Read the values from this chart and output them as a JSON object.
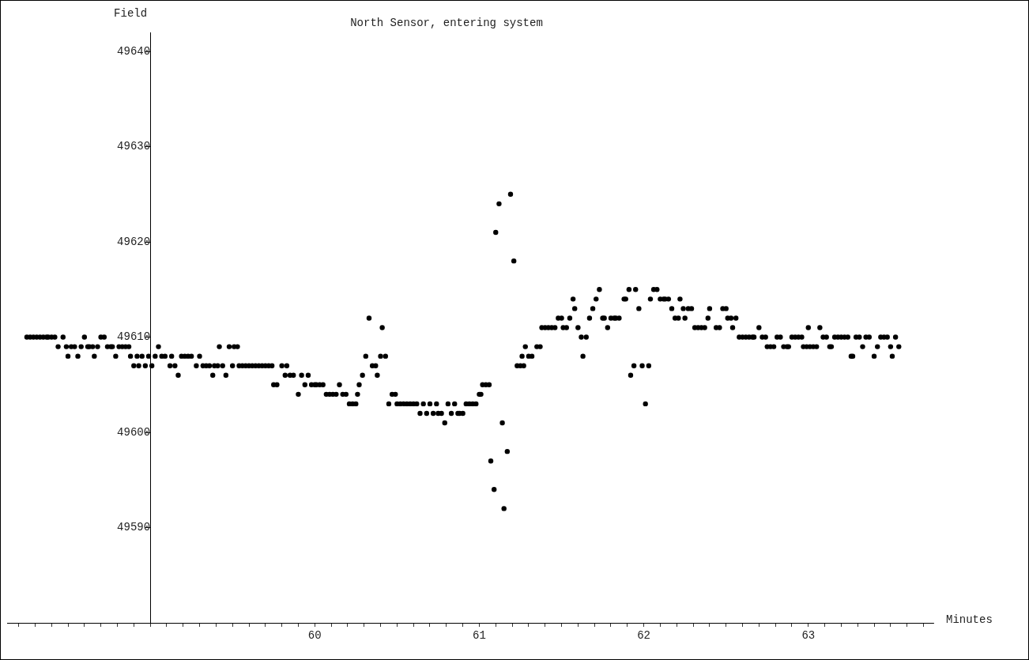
{
  "chart_data": {
    "type": "scatter",
    "title": "North Sensor, entering system",
    "xlabel": "Minutes",
    "ylabel": "Field",
    "color": "#000000",
    "marker": "circle",
    "x": [
      58.25,
      58.27,
      58.29,
      58.31,
      58.33,
      58.35,
      58.37,
      58.38,
      58.4,
      58.42,
      58.44,
      58.47,
      58.49,
      58.5,
      58.52,
      58.54,
      58.56,
      58.58,
      58.6,
      58.62,
      58.63,
      58.65,
      58.66,
      58.68,
      58.7,
      58.72,
      58.74,
      58.76,
      58.77,
      58.79,
      58.81,
      58.83,
      58.85,
      58.87,
      58.88,
      58.9,
      58.92,
      58.93,
      58.95,
      58.97,
      58.99,
      59.01,
      59.03,
      59.05,
      59.07,
      59.09,
      59.12,
      59.13,
      59.15,
      59.17,
      59.19,
      59.21,
      59.23,
      59.25,
      59.28,
      59.3,
      59.32,
      59.34,
      59.36,
      59.38,
      59.39,
      59.41,
      59.42,
      59.44,
      59.46,
      59.48,
      59.5,
      59.51,
      59.53,
      59.54,
      59.56,
      59.58,
      59.6,
      59.62,
      59.64,
      59.66,
      59.68,
      59.7,
      59.72,
      59.74,
      59.75,
      59.77,
      59.8,
      59.82,
      59.83,
      59.85,
      59.87,
      59.9,
      59.92,
      59.94,
      59.96,
      59.98,
      60.0,
      60.01,
      60.03,
      60.05,
      60.07,
      60.09,
      60.11,
      60.13,
      60.15,
      60.17,
      60.19,
      60.21,
      60.23,
      60.25,
      60.26,
      60.27,
      60.29,
      60.31,
      60.33,
      60.35,
      60.37,
      60.38,
      60.4,
      60.41,
      60.43,
      60.45,
      60.47,
      60.49,
      60.5,
      60.52,
      60.54,
      60.56,
      60.58,
      60.6,
      60.62,
      60.64,
      60.66,
      60.68,
      60.7,
      60.72,
      60.74,
      60.75,
      60.77,
      60.79,
      60.81,
      60.83,
      60.85,
      60.87,
      60.88,
      60.9,
      60.92,
      60.94,
      60.96,
      60.98,
      61.0,
      61.01,
      61.02,
      61.04,
      61.06,
      61.07,
      61.09,
      61.1,
      61.12,
      61.14,
      61.15,
      61.17,
      61.19,
      61.21,
      61.23,
      61.25,
      61.26,
      61.27,
      61.28,
      61.3,
      61.32,
      61.35,
      61.37,
      61.38,
      61.4,
      61.42,
      61.44,
      61.46,
      61.48,
      61.5,
      61.51,
      61.53,
      61.55,
      61.57,
      61.58,
      61.6,
      61.62,
      61.63,
      61.65,
      61.67,
      61.69,
      61.71,
      61.73,
      61.75,
      61.76,
      61.78,
      61.8,
      61.82,
      61.83,
      61.85,
      61.88,
      61.89,
      61.91,
      61.92,
      61.94,
      61.95,
      61.97,
      61.99,
      62.01,
      62.03,
      62.04,
      62.06,
      62.08,
      62.1,
      62.12,
      62.13,
      62.15,
      62.17,
      62.19,
      62.21,
      62.22,
      62.24,
      62.25,
      62.27,
      62.29,
      62.31,
      62.33,
      62.35,
      62.37,
      62.39,
      62.4,
      62.44,
      62.46,
      62.48,
      62.5,
      62.51,
      62.53,
      62.54,
      62.56,
      62.58,
      62.6,
      62.62,
      62.64,
      62.66,
      62.67,
      62.7,
      62.72,
      62.74,
      62.75,
      62.77,
      62.79,
      62.81,
      62.83,
      62.85,
      62.87,
      62.88,
      62.9,
      62.92,
      62.94,
      62.96,
      62.97,
      62.99,
      63.0,
      63.01,
      63.03,
      63.05,
      63.07,
      63.09,
      63.11,
      63.13,
      63.14,
      63.16,
      63.18,
      63.2,
      63.22,
      63.24,
      63.26,
      63.27,
      63.29,
      63.31,
      63.33,
      63.35,
      63.37,
      63.4,
      63.42,
      63.44,
      63.46,
      63.48,
      63.5,
      63.51,
      63.53,
      63.55
    ],
    "values": [
      49610,
      49610,
      49610,
      49610,
      49610,
      49610,
      49610,
      49610,
      49610,
      49610,
      49609,
      49610,
      49609,
      49608,
      49609,
      49609,
      49608,
      49609,
      49610,
      49609,
      49609,
      49609,
      49608,
      49609,
      49610,
      49610,
      49609,
      49609,
      49609,
      49608,
      49609,
      49609,
      49609,
      49609,
      49608,
      49607,
      49608,
      49607,
      49608,
      49607,
      49608,
      49607,
      49608,
      49609,
      49608,
      49608,
      49607,
      49608,
      49607,
      49606,
      49608,
      49608,
      49608,
      49608,
      49607,
      49608,
      49607,
      49607,
      49607,
      49606,
      49607,
      49607,
      49609,
      49607,
      49606,
      49609,
      49607,
      49609,
      49609,
      49607,
      49607,
      49607,
      49607,
      49607,
      49607,
      49607,
      49607,
      49607,
      49607,
      49607,
      49605,
      49605,
      49607,
      49606,
      49607,
      49606,
      49606,
      49604,
      49606,
      49605,
      49606,
      49605,
      49605,
      49605,
      49605,
      49605,
      49604,
      49604,
      49604,
      49604,
      49605,
      49604,
      49604,
      49603,
      49603,
      49603,
      49604,
      49605,
      49606,
      49608,
      49612,
      49607,
      49607,
      49606,
      49608,
      49611,
      49608,
      49603,
      49604,
      49604,
      49603,
      49603,
      49603,
      49603,
      49603,
      49603,
      49603,
      49602,
      49603,
      49602,
      49603,
      49602,
      49603,
      49602,
      49602,
      49601,
      49603,
      49602,
      49603,
      49602,
      49602,
      49602,
      49603,
      49603,
      49603,
      49603,
      49604,
      49604,
      49605,
      49605,
      49605,
      49597,
      49594,
      49621,
      49624,
      49601,
      49592,
      49598,
      49625,
      49618,
      49607,
      49607,
      49608,
      49607,
      49609,
      49608,
      49608,
      49609,
      49609,
      49611,
      49611,
      49611,
      49611,
      49611,
      49612,
      49612,
      49611,
      49611,
      49612,
      49614,
      49613,
      49611,
      49610,
      49608,
      49610,
      49612,
      49613,
      49614,
      49615,
      49612,
      49612,
      49611,
      49612,
      49612,
      49612,
      49612,
      49614,
      49614,
      49615,
      49606,
      49607,
      49615,
      49613,
      49607,
      49603,
      49607,
      49614,
      49615,
      49615,
      49614,
      49614,
      49614,
      49614,
      49613,
      49612,
      49612,
      49614,
      49613,
      49612,
      49613,
      49613,
      49611,
      49611,
      49611,
      49611,
      49612,
      49613,
      49611,
      49611,
      49613,
      49613,
      49612,
      49612,
      49611,
      49612,
      49610,
      49610,
      49610,
      49610,
      49610,
      49610,
      49611,
      49610,
      49610,
      49609,
      49609,
      49609,
      49610,
      49610,
      49609,
      49609,
      49609,
      49610,
      49610,
      49610,
      49610,
      49609,
      49609,
      49611,
      49609,
      49609,
      49609,
      49611,
      49610,
      49610,
      49609,
      49609,
      49610,
      49610,
      49610,
      49610,
      49610,
      49608,
      49608,
      49610,
      49610,
      49609,
      49610,
      49610,
      49608,
      49609,
      49610,
      49610,
      49610,
      49609,
      49608,
      49610,
      49609
    ],
    "xlim": [
      58.13,
      63.76
    ],
    "xticks": [
      {
        "value": 58.2,
        "label": null
      },
      {
        "value": 58.3,
        "label": null
      },
      {
        "value": 58.4,
        "label": null
      },
      {
        "value": 58.5,
        "label": null
      },
      {
        "value": 58.6,
        "label": null
      },
      {
        "value": 58.7,
        "label": null
      },
      {
        "value": 58.8,
        "label": null
      },
      {
        "value": 58.9,
        "label": null
      },
      {
        "value": 59,
        "label": null
      },
      {
        "value": 59.1,
        "label": null
      },
      {
        "value": 59.2,
        "label": null
      },
      {
        "value": 59.3,
        "label": null
      },
      {
        "value": 59.4,
        "label": null
      },
      {
        "value": 59.5,
        "label": null
      },
      {
        "value": 59.6,
        "label": null
      },
      {
        "value": 59.7,
        "label": null
      },
      {
        "value": 59.8,
        "label": null
      },
      {
        "value": 59.9,
        "label": null
      },
      60,
      {
        "value": 60.1,
        "label": null
      },
      {
        "value": 60.2,
        "label": null
      },
      {
        "value": 60.3,
        "label": null
      },
      {
        "value": 60.4,
        "label": null
      },
      {
        "value": 60.5,
        "label": null
      },
      {
        "value": 60.6,
        "label": null
      },
      {
        "value": 60.7,
        "label": null
      },
      {
        "value": 60.8,
        "label": null
      },
      {
        "value": 60.9,
        "label": null
      },
      61,
      {
        "value": 61.1,
        "label": null
      },
      {
        "value": 61.2,
        "label": null
      },
      {
        "value": 61.3,
        "label": null
      },
      {
        "value": 61.4,
        "label": null
      },
      {
        "value": 61.5,
        "label": null
      },
      {
        "value": 61.6,
        "label": null
      },
      {
        "value": 61.7,
        "label": null
      },
      {
        "value": 61.8,
        "label": null
      },
      {
        "value": 61.9,
        "label": null
      },
      62,
      {
        "value": 62.1,
        "label": null
      },
      {
        "value": 62.2,
        "label": null
      },
      {
        "value": 62.3,
        "label": null
      },
      {
        "value": 62.4,
        "label": null
      },
      {
        "value": 62.5,
        "label": null
      },
      {
        "value": 62.6,
        "label": null
      },
      {
        "value": 62.7,
        "label": null
      },
      {
        "value": 62.8,
        "label": null
      },
      {
        "value": 62.9,
        "label": null
      },
      63,
      {
        "value": 63.1,
        "label": null
      },
      {
        "value": 63.2,
        "label": null
      },
      {
        "value": 63.3,
        "label": null
      },
      {
        "value": 63.4,
        "label": null
      },
      {
        "value": 63.5,
        "label": null
      },
      {
        "value": 63.6,
        "label": null
      },
      {
        "value": 63.7,
        "label": null
      }
    ],
    "ylim": [
      49580,
      49642
    ],
    "yticks": [
      {
        "value": 49580,
        "label": null
      },
      49590,
      49600,
      49610,
      49620,
      49630,
      49640
    ]
  }
}
